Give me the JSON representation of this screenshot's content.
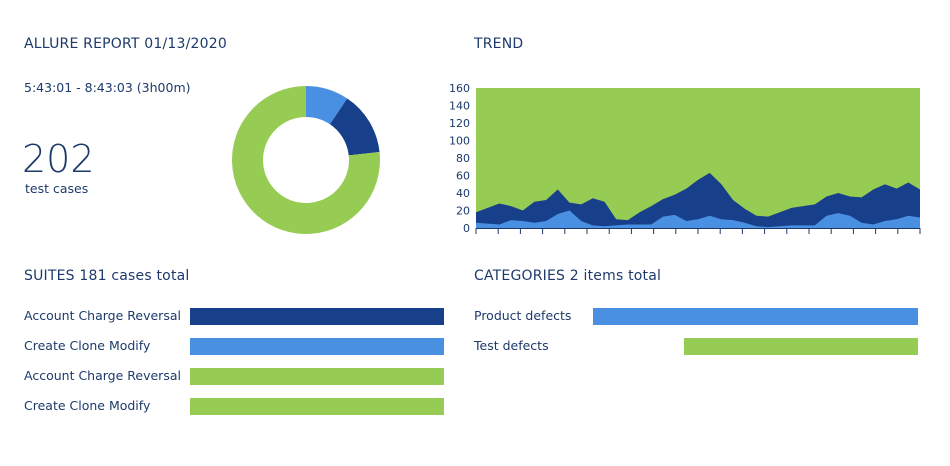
{
  "report": {
    "title": "ALLURE REPORT 01/13/2020",
    "time_range": "5:43:01 - 8:43:03 (3h00m)",
    "total_cases": "202",
    "total_cases_label": "test cases"
  },
  "donut": {
    "segments": [
      {
        "value": 19,
        "color": "#4a90e2"
      },
      {
        "value": 28,
        "color": "#173f8a"
      },
      {
        "value": 155,
        "color": "#97cc54"
      }
    ]
  },
  "trend": {
    "title": "TREND",
    "colors": {
      "top": "#97cc54",
      "mid": "#173f8a",
      "low": "#4a90e2"
    },
    "chart_data": {
      "type": "area",
      "x": [
        0,
        1,
        2,
        3,
        4,
        5,
        6,
        7,
        8,
        9,
        10,
        11,
        12,
        13,
        14,
        15,
        16,
        17,
        18,
        19,
        20,
        21,
        22,
        23,
        24,
        25,
        26,
        27,
        28,
        29,
        30,
        31,
        32,
        33,
        34,
        35,
        36,
        37,
        38
      ],
      "ylim": [
        0,
        160
      ],
      "yticks": [
        "0",
        "20",
        "40",
        "60",
        "80",
        "100",
        "120",
        "140",
        "160"
      ],
      "series": [
        {
          "values": [
            6,
            5,
            4,
            9,
            8,
            6,
            8,
            16,
            20,
            8,
            3,
            2,
            3,
            4,
            4,
            4,
            13,
            15,
            8,
            10,
            14,
            10,
            9,
            6,
            2,
            1,
            2,
            3,
            3,
            3,
            14,
            17,
            14,
            6,
            4,
            8,
            10,
            14,
            12
          ]
        },
        {
          "values": [
            18,
            23,
            28,
            25,
            20,
            30,
            32,
            44,
            29,
            27,
            34,
            30,
            10,
            9,
            18,
            25,
            33,
            38,
            45,
            55,
            63,
            50,
            32,
            22,
            14,
            13,
            18,
            23,
            25,
            27,
            36,
            40,
            36,
            35,
            44,
            50,
            45,
            52,
            44
          ]
        },
        {
          "values": [
            160,
            160,
            160,
            160,
            160,
            160,
            160,
            160,
            160,
            160,
            160,
            160,
            160,
            160,
            160,
            160,
            160,
            160,
            160,
            160,
            160,
            160,
            160,
            160,
            160,
            160,
            160,
            160,
            160,
            160,
            160,
            160,
            160,
            160,
            160,
            160,
            160,
            160,
            160
          ]
        }
      ]
    }
  },
  "suites": {
    "title": "SUITES 181 cases total",
    "items": [
      {
        "label": "Account Charge Reversal",
        "color": "#173f8a"
      },
      {
        "label": "Create Clone Modify",
        "color": "#4a90e2"
      },
      {
        "label": "Account Charge Reversal",
        "color": "#97cc54"
      },
      {
        "label": "Create Clone Modify",
        "color": "#97cc54"
      }
    ]
  },
  "categories": {
    "title": "CATEGORIES 2 items total",
    "items": [
      {
        "label": "Product defects",
        "color": "#4a90e2",
        "fraction": 1.0
      },
      {
        "label": "Test defects",
        "color": "#97cc54",
        "fraction": 0.72
      }
    ]
  }
}
